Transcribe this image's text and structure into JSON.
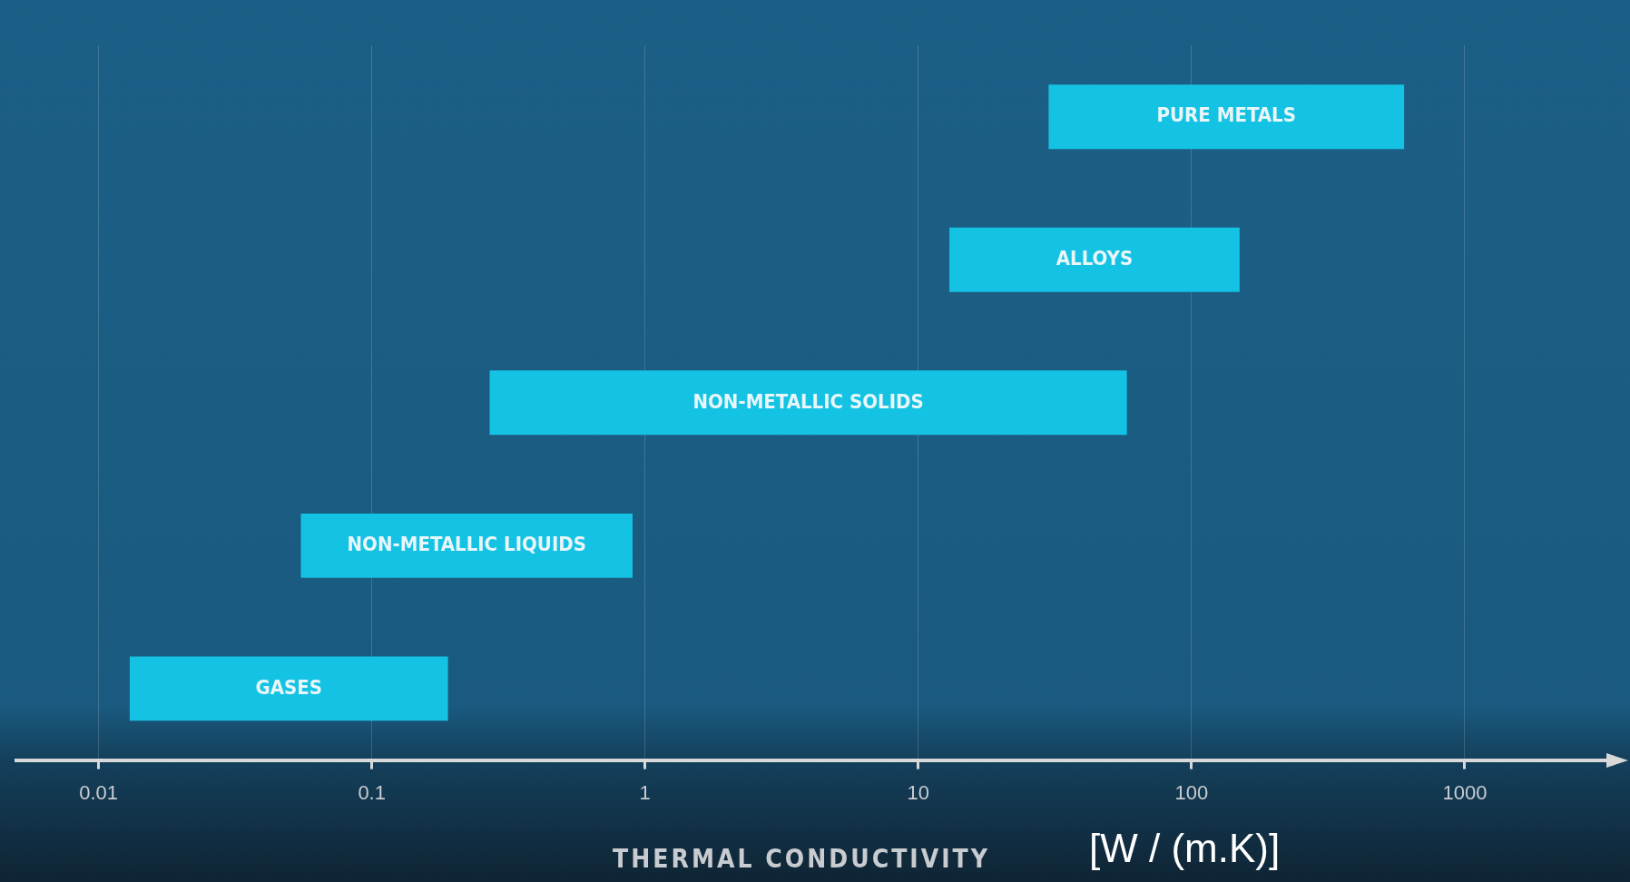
{
  "chart_data": {
    "type": "bar",
    "orientation": "horizontal",
    "log": "x",
    "xlabel": "THERMAL CONDUCTIVITY",
    "annotations": [
      "[W / (m.K)]"
    ],
    "categories": [
      "PURE METALS",
      "ALLOYS",
      "NON-METALLIC SOLIDS",
      "NON-METALLIC LIQUIDS",
      "GASES"
    ],
    "base": [
      30,
      13,
      0.27,
      0.055,
      0.013
    ],
    "values": [
      570,
      137,
      57.73,
      0.845,
      0.177
    ],
    "color": "#14c3e3",
    "xlim": [
      0.005,
      3300
    ],
    "xticks": [
      0.01,
      0.1,
      1,
      10,
      100,
      1000
    ],
    "grid": "x",
    "tick_labels": "x",
    "legend": false
  }
}
